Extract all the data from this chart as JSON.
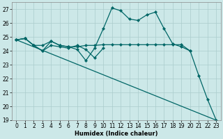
{
  "xlabel": "Humidex (Indice chaleur)",
  "xlim": [
    -0.5,
    23.5
  ],
  "ylim": [
    19,
    27.5
  ],
  "yticks": [
    19,
    20,
    21,
    22,
    23,
    24,
    25,
    26,
    27
  ],
  "xticks": [
    0,
    1,
    2,
    3,
    4,
    5,
    6,
    7,
    8,
    9,
    10,
    11,
    12,
    13,
    14,
    15,
    16,
    17,
    18,
    19,
    20,
    21,
    22,
    23
  ],
  "bg_color": "#cce8e8",
  "line_color": "#006666",
  "grid_color": "#aacccc",
  "series1_x": [
    0,
    1,
    2,
    3,
    4,
    5,
    6,
    7,
    8,
    9,
    10,
    11,
    12,
    13,
    14,
    15,
    16,
    17,
    18,
    19,
    20,
    21,
    22,
    23
  ],
  "series1_y": [
    24.8,
    24.9,
    24.4,
    24.0,
    24.7,
    24.4,
    24.3,
    24.1,
    23.3,
    24.2,
    25.6,
    27.1,
    26.9,
    26.3,
    26.2,
    26.6,
    26.8,
    25.6,
    24.5,
    24.3,
    24.0,
    22.2,
    20.5,
    19.0
  ],
  "series2_x": [
    0,
    1,
    2,
    3,
    4,
    5,
    6,
    7,
    8,
    9,
    10,
    11,
    12,
    13,
    14,
    15,
    16,
    17,
    18,
    19,
    20
  ],
  "series2_y": [
    24.8,
    24.9,
    24.4,
    24.4,
    24.7,
    24.4,
    24.3,
    24.3,
    24.4,
    24.4,
    24.45,
    24.45,
    24.45,
    24.45,
    24.45,
    24.45,
    24.45,
    24.45,
    24.45,
    24.45,
    24.0
  ],
  "series3_x": [
    0,
    1,
    2,
    3,
    4,
    5,
    6,
    7,
    8,
    9,
    10
  ],
  "series3_y": [
    24.8,
    24.9,
    24.4,
    24.0,
    24.4,
    24.3,
    24.2,
    24.4,
    24.1,
    23.5,
    24.2
  ],
  "series4_x": [
    0,
    23
  ],
  "series4_y": [
    24.8,
    19.0
  ]
}
